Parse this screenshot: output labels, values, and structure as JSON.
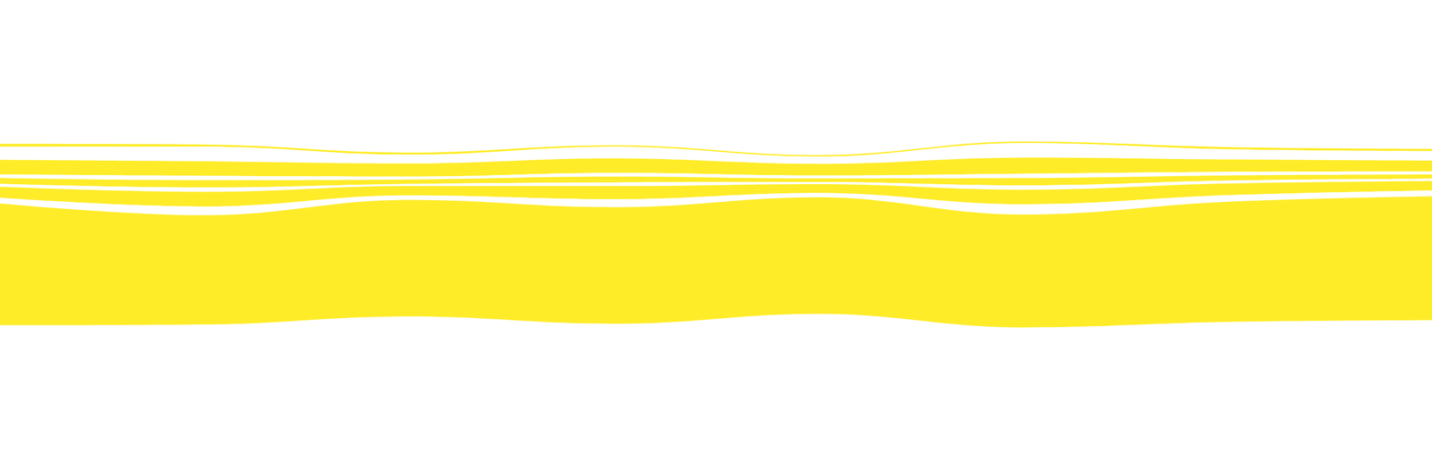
{
  "chart_data": {
    "type": "streamgraph",
    "x": [
      0,
      1,
      2,
      3,
      4,
      5,
      6,
      7
    ],
    "xlim": [
      0,
      7
    ],
    "tick_labels": false,
    "grid": false,
    "series": [
      {
        "color": "#ffec29",
        "values": [
          4,
          3,
          3,
          2,
          2,
          2,
          3,
          3
        ]
      },
      {
        "color": "#ffffff",
        "values": [
          18,
          20,
          12,
          16,
          10,
          20,
          14,
          13
        ]
      },
      {
        "color": "#ffec29",
        "values": [
          20,
          20,
          18,
          20,
          16,
          22,
          17,
          15
        ]
      },
      {
        "color": "#ffffff",
        "values": [
          5,
          6,
          4,
          5,
          4,
          6,
          5,
          4
        ]
      },
      {
        "color": "#ffec29",
        "values": [
          8,
          10,
          6,
          8,
          5,
          10,
          7,
          6
        ]
      },
      {
        "color": "#ffffff",
        "values": [
          4,
          6,
          3,
          5,
          3,
          6,
          4,
          3
        ]
      },
      {
        "color": "#ffec29",
        "values": [
          15,
          20,
          13,
          18,
          12,
          20,
          16,
          13
        ]
      },
      {
        "color": "#ffffff",
        "values": [
          8,
          12,
          6,
          11,
          6,
          14,
          9,
          8
        ]
      },
      {
        "color": "#ffec29",
        "values": [
          167,
          150,
          160,
          160,
          160,
          155,
          165,
          170
        ]
      }
    ]
  }
}
